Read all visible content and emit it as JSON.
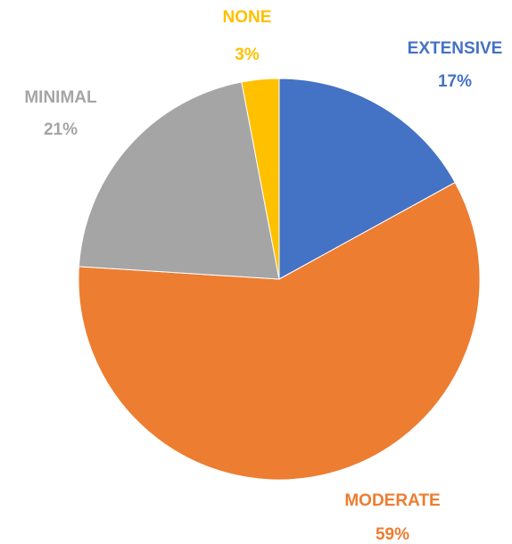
{
  "chart_data": {
    "type": "pie",
    "categories": [
      "EXTENSIVE",
      "MODERATE",
      "MINIMAL",
      "NONE"
    ],
    "values": [
      17,
      59,
      21,
      3
    ],
    "value_labels": [
      "17%",
      "59%",
      "21%",
      "3%"
    ],
    "colors": [
      "#4472c4",
      "#ed7d31",
      "#a5a5a5",
      "#ffc000"
    ]
  }
}
